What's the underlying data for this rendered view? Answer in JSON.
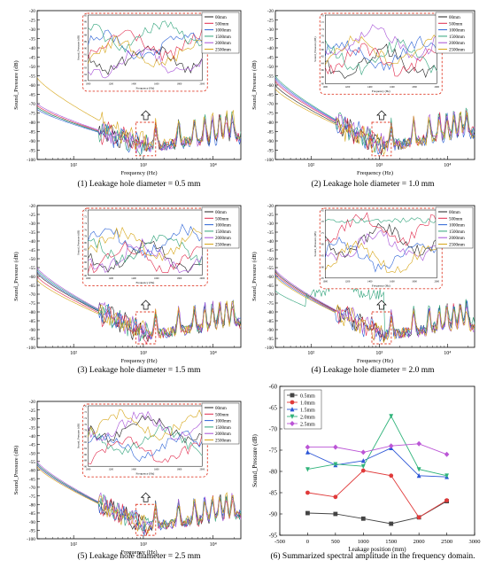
{
  "colors": {
    "s00": "#222222",
    "s500": "#e0294b",
    "s1000": "#2b62d6",
    "s1500": "#2fa37a",
    "s2000": "#a54fd6",
    "s2500": "#d6a516",
    "p05": "#444444",
    "p10": "#e03a3a",
    "p15": "#2b55d6",
    "p20": "#2fb37a",
    "p25": "#bb55d6",
    "highlight": "#e0402e"
  },
  "icons": {
    "up_arrow": "up-arrow-icon"
  },
  "chart_data": [
    {
      "type": "line",
      "caption": "(1) Leakage hole diameter = 0.5 mm",
      "xlabel": "Frequency (Hz)",
      "ylabel": "Sound_Pressure (dB)",
      "x_scale": "log",
      "xlim": [
        30,
        25000
      ],
      "ylim": [
        -100,
        -20
      ],
      "y_ticks": [
        "-20",
        "-25",
        "-30",
        "-35",
        "-40",
        "-45",
        "-50",
        "-55",
        "-60",
        "-65",
        "-70",
        "-75",
        "-80",
        "-85",
        "-90",
        "-95",
        "-100"
      ],
      "x_ticks": [
        "10²",
        "10³",
        "10⁴"
      ],
      "legend": [
        "00mm",
        "500mm",
        "1000mm",
        "1500mm",
        "2000mm",
        "2500mm"
      ],
      "series_level_start": [
        -72,
        -71,
        -73,
        -72,
        -70,
        -56
      ],
      "series_level_end": [
        -88,
        -88,
        -89,
        -87,
        -88,
        -86
      ],
      "inset": {
        "xlabel": "Frequency (Hz)",
        "ylabel": "Sound_Pressure (dB)",
        "x_ticks": [
          "1000",
          "1200",
          "1400",
          "1600",
          "1800",
          "2000"
        ],
        "y_ticks": [
          "-85",
          "-86",
          "-87",
          "-88",
          "-89",
          "-90",
          "-91",
          "-92",
          "-93",
          "-94",
          "-95"
        ]
      }
    },
    {
      "type": "line",
      "caption": "(2) Leakage hole diameter = 1.0 mm",
      "xlabel": "Frequency (Hz)",
      "ylabel": "Sound_Pressure (dB)",
      "x_scale": "log",
      "xlim": [
        30,
        25000
      ],
      "ylim": [
        -100,
        -20
      ],
      "y_ticks": [
        "-20",
        "-25",
        "-30",
        "-35",
        "-40",
        "-45",
        "-50",
        "-55",
        "-60",
        "-65",
        "-70",
        "-75",
        "-80",
        "-85",
        "-90",
        "-95",
        "-100"
      ],
      "x_ticks": [
        "10²",
        "10³",
        "10⁴"
      ],
      "legend": [
        "00mm",
        "500mm",
        "1000mm",
        "1500mm",
        "2000mm",
        "2500mm"
      ],
      "series_level_start": [
        -60,
        -58,
        -56,
        -55,
        -57,
        -62
      ],
      "series_level_end": [
        -86,
        -85,
        -86,
        -84,
        -85,
        -86
      ],
      "inset": {
        "xlabel": "Frequency (Hz)",
        "ylabel": "Sound_Pressure (dB)",
        "x_ticks": [
          "1000",
          "1200",
          "1400",
          "1600",
          "1800",
          "2000"
        ],
        "y_ticks": [
          "-70",
          "-72",
          "-74",
          "-76",
          "-78",
          "-80",
          "-82",
          "-84",
          "-86",
          "-88",
          "-90"
        ]
      }
    },
    {
      "type": "line",
      "caption": "(3) Leakage hole diameter = 1.5 mm",
      "xlabel": "Frequency (Hz)",
      "ylabel": "Sound_Pressure (dB)",
      "x_scale": "log",
      "xlim": [
        30,
        25000
      ],
      "ylim": [
        -100,
        -20
      ],
      "y_ticks": [
        "-20",
        "-25",
        "-30",
        "-35",
        "-40",
        "-45",
        "-50",
        "-55",
        "-60",
        "-65",
        "-70",
        "-75",
        "-80",
        "-85",
        "-90",
        "-95",
        "-100"
      ],
      "x_ticks": [
        "10²",
        "10³",
        "10⁴"
      ],
      "legend": [
        "00mm",
        "500mm",
        "1000mm",
        "1500mm",
        "2000mm",
        "2500mm"
      ],
      "series_level_start": [
        -58,
        -60,
        -57,
        -56,
        -55,
        -62
      ],
      "series_level_end": [
        -86,
        -87,
        -86,
        -85,
        -86,
        -86
      ],
      "inset": {
        "xlabel": "Frequency (Hz)",
        "ylabel": "Sound_Pressure (dB)",
        "x_ticks": [
          "1000",
          "1200",
          "1400",
          "1600",
          "1800",
          "2000"
        ],
        "y_ticks": [
          "-70",
          "-72",
          "-74",
          "-76",
          "-78",
          "-80",
          "-82",
          "-84",
          "-86",
          "-88",
          "-90"
        ]
      }
    },
    {
      "type": "line",
      "caption": "(4) Leakage hole diameter = 2.0 mm",
      "xlabel": "Frequency (Hz)",
      "ylabel": "Sound_Pressure (dB)",
      "x_scale": "log",
      "xlim": [
        30,
        25000
      ],
      "ylim": [
        -100,
        -20
      ],
      "y_ticks": [
        "-20",
        "-25",
        "-30",
        "-35",
        "-40",
        "-45",
        "-50",
        "-55",
        "-60",
        "-65",
        "-70",
        "-75",
        "-80",
        "-85",
        "-90",
        "-95",
        "-100"
      ],
      "x_ticks": [
        "10²",
        "10³",
        "10⁴"
      ],
      "legend": [
        "00mm",
        "500mm",
        "1000mm",
        "1500mm",
        "2000mm",
        "2500mm"
      ],
      "series_level_start": [
        -57,
        -58,
        -59,
        -68,
        -56,
        -60
      ],
      "series_level_end": [
        -86,
        -87,
        -86,
        -85,
        -89,
        -88
      ],
      "inset": {
        "xlabel": "Frequency (Hz)",
        "ylabel": "Sound_Pressure (dB)",
        "x_ticks": [
          "1000",
          "1200",
          "1400",
          "1600",
          "1800",
          "2000"
        ],
        "y_ticks": [
          "-65",
          "-70",
          "-75",
          "-80",
          "-85",
          "-90",
          "-95"
        ]
      }
    },
    {
      "type": "line",
      "caption": "(5) Leakage hole diameter = 2.5 mm",
      "xlabel": "Frequency (Hz)",
      "ylabel": "Sound_Pressure (dB)",
      "x_scale": "log",
      "xlim": [
        30,
        25000
      ],
      "ylim": [
        -100,
        -20
      ],
      "y_ticks": [
        "-20",
        "-25",
        "-30",
        "-35",
        "-40",
        "-45",
        "-50",
        "-55",
        "-60",
        "-65",
        "-70",
        "-75",
        "-80",
        "-85",
        "-90",
        "-95",
        "-100"
      ],
      "x_ticks": [
        "10²",
        "10³",
        "10⁴"
      ],
      "legend": [
        "00mm",
        "500mm",
        "1000mm",
        "1500mm",
        "2000mm",
        "2500mm"
      ],
      "series_level_start": [
        -56,
        -57,
        -57,
        -56,
        -55,
        -58
      ],
      "series_level_end": [
        -86,
        -87,
        -85,
        -86,
        -86,
        -85
      ],
      "inset": {
        "xlabel": "Frequency (Hz)",
        "ylabel": "Sound_Pressure (dB)",
        "x_ticks": [
          "1000",
          "1200",
          "1400",
          "1600",
          "1800",
          "2000"
        ],
        "y_ticks": [
          "-70",
          "-72",
          "-74",
          "-76",
          "-78",
          "-80",
          "-82",
          "-84",
          "-86",
          "-88",
          "-90"
        ]
      }
    },
    {
      "type": "line",
      "caption": "(6) Summarized spectral amplitude in the frequency domain.",
      "xlabel": "Leakage position (mm)",
      "ylabel": "Sound_Pressure (dB)",
      "xlim": [
        -500,
        3000
      ],
      "ylim": [
        -95,
        -60
      ],
      "x_ticks": [
        -500,
        0,
        500,
        1000,
        1500,
        2000,
        2500,
        3000
      ],
      "y_ticks": [
        -60,
        -65,
        -70,
        -75,
        -80,
        -85,
        -90,
        -95
      ],
      "x": [
        0,
        500,
        1000,
        1500,
        2000,
        2500
      ],
      "legend_position": "top-left",
      "series": [
        {
          "name": "0.5mm",
          "values": [
            -89.8,
            -90.0,
            -91.1,
            -92.3,
            -90.8,
            -87.0
          ]
        },
        {
          "name": "1.0mm",
          "values": [
            -85.0,
            -86.0,
            -79.8,
            -81.0,
            -90.8,
            -86.8
          ]
        },
        {
          "name": "1.5mm",
          "values": [
            -75.5,
            -78.5,
            -77.5,
            -74.5,
            -81.0,
            -81.3
          ]
        },
        {
          "name": "2.0mm",
          "values": [
            -79.5,
            -78.3,
            -78.8,
            -67.0,
            -79.5,
            -81.0
          ]
        },
        {
          "name": "2.5mm",
          "values": [
            -74.3,
            -74.3,
            -75.5,
            -74.0,
            -73.5,
            -76.0
          ]
        }
      ]
    }
  ]
}
